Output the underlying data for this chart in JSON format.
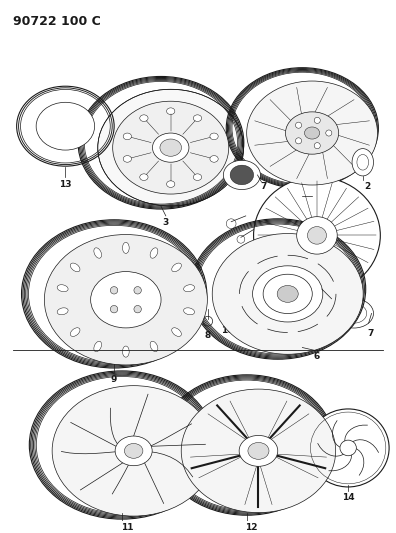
{
  "title": "90722 100 C",
  "bg": "#ffffff",
  "lc": "#1a1a1a",
  "fig_w": 3.96,
  "fig_h": 5.33
}
